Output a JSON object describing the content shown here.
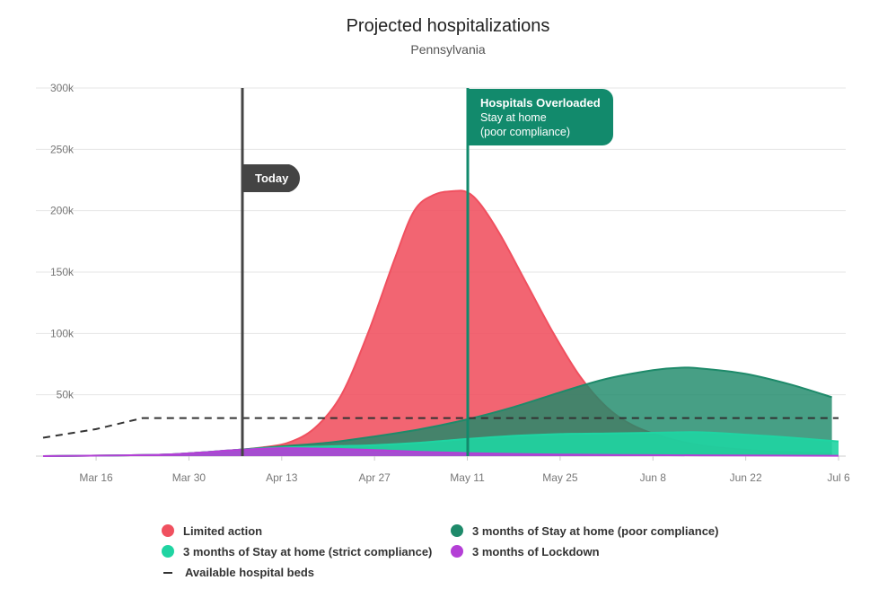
{
  "chart_data": {
    "type": "area",
    "title": "Projected hospitalizations",
    "subtitle": "Pennsylvania",
    "x_tick_labels": [
      "Mar 16",
      "Mar 30",
      "Apr 13",
      "Apr 27",
      "May 11",
      "May 25",
      "Jun 8",
      "Jun 22",
      "Jul 6"
    ],
    "y_tick_labels": [
      "300k",
      "250k",
      "200k",
      "150k",
      "100k",
      "50k"
    ],
    "xlim": [
      "2020-03-08",
      "2020-07-06"
    ],
    "ylim": [
      0,
      300000
    ],
    "y_ticks": [
      50000,
      100000,
      150000,
      200000,
      250000,
      300000
    ],
    "grid": "horizontal",
    "legend_position": "bottom",
    "series": [
      {
        "name": "Limited action",
        "color": "#f0505f",
        "x": [
          "2020-03-08",
          "2020-03-25",
          "2020-04-01",
          "2020-04-06",
          "2020-04-10",
          "2020-04-14",
          "2020-04-18",
          "2020-04-22",
          "2020-04-26",
          "2020-04-30",
          "2020-05-03",
          "2020-05-06",
          "2020-05-09",
          "2020-05-11",
          "2020-05-13",
          "2020-05-16",
          "2020-05-20",
          "2020-05-24",
          "2020-05-28",
          "2020-06-01",
          "2020-06-05",
          "2020-06-10",
          "2020-06-15",
          "2020-06-20",
          "2020-06-25",
          "2020-06-30",
          "2020-07-05"
        ],
        "values": [
          0,
          1000,
          3000,
          5000,
          7000,
          11000,
          23000,
          50000,
          100000,
          160000,
          200000,
          213000,
          216000,
          215000,
          205000,
          180000,
          140000,
          100000,
          65000,
          40000,
          25000,
          15000,
          9000,
          6000,
          4000,
          3000,
          2000
        ]
      },
      {
        "name": "3 months of Stay at home (poor compliance)",
        "color": "#1e8a6a",
        "x": [
          "2020-03-08",
          "2020-03-25",
          "2020-04-01",
          "2020-04-06",
          "2020-04-13",
          "2020-04-20",
          "2020-04-27",
          "2020-05-04",
          "2020-05-11",
          "2020-05-18",
          "2020-05-25",
          "2020-06-01",
          "2020-06-08",
          "2020-06-12",
          "2020-06-15",
          "2020-06-22",
          "2020-06-29",
          "2020-07-05"
        ],
        "values": [
          0,
          1000,
          3000,
          5000,
          8000,
          11000,
          16000,
          22000,
          30000,
          40000,
          52000,
          63000,
          70000,
          72000,
          71500,
          67000,
          58000,
          48000
        ]
      },
      {
        "name": "3 months of Stay at home (strict compliance)",
        "color": "#1fd4a2",
        "x": [
          "2020-03-08",
          "2020-03-25",
          "2020-04-01",
          "2020-04-06",
          "2020-04-13",
          "2020-04-20",
          "2020-04-27",
          "2020-05-04",
          "2020-05-11",
          "2020-05-18",
          "2020-05-25",
          "2020-06-01",
          "2020-06-08",
          "2020-06-15",
          "2020-06-22",
          "2020-06-29",
          "2020-07-06"
        ],
        "values": [
          0,
          1000,
          3000,
          5000,
          7000,
          8000,
          9000,
          11000,
          14000,
          16500,
          18000,
          18500,
          19000,
          19500,
          17500,
          15000,
          12000
        ]
      },
      {
        "name": "3 months of Lockdown",
        "color": "#b43fd6",
        "x": [
          "2020-03-08",
          "2020-03-25",
          "2020-04-01",
          "2020-04-06",
          "2020-04-13",
          "2020-04-20",
          "2020-04-27",
          "2020-05-04",
          "2020-05-11",
          "2020-05-18",
          "2020-05-25",
          "2020-06-08",
          "2020-06-22",
          "2020-07-06"
        ],
        "values": [
          0,
          1000,
          3000,
          5000,
          6500,
          6000,
          5000,
          3500,
          2500,
          1800,
          1300,
          800,
          500,
          300
        ]
      }
    ],
    "available_beds": {
      "name": "Available hospital beds",
      "color": "#333333",
      "x": [
        "2020-03-08",
        "2020-03-16",
        "2020-03-23",
        "2020-07-06"
      ],
      "values": [
        15000,
        22000,
        31000,
        31000
      ]
    },
    "annotations": [
      {
        "x": "2020-04-07",
        "label": "Today",
        "color": "#444444"
      },
      {
        "x": "2020-05-11",
        "label": "Hospitals Overloaded",
        "sub1": "Stay at home",
        "sub2": "(poor compliance)",
        "color": "#128a6c"
      }
    ]
  }
}
